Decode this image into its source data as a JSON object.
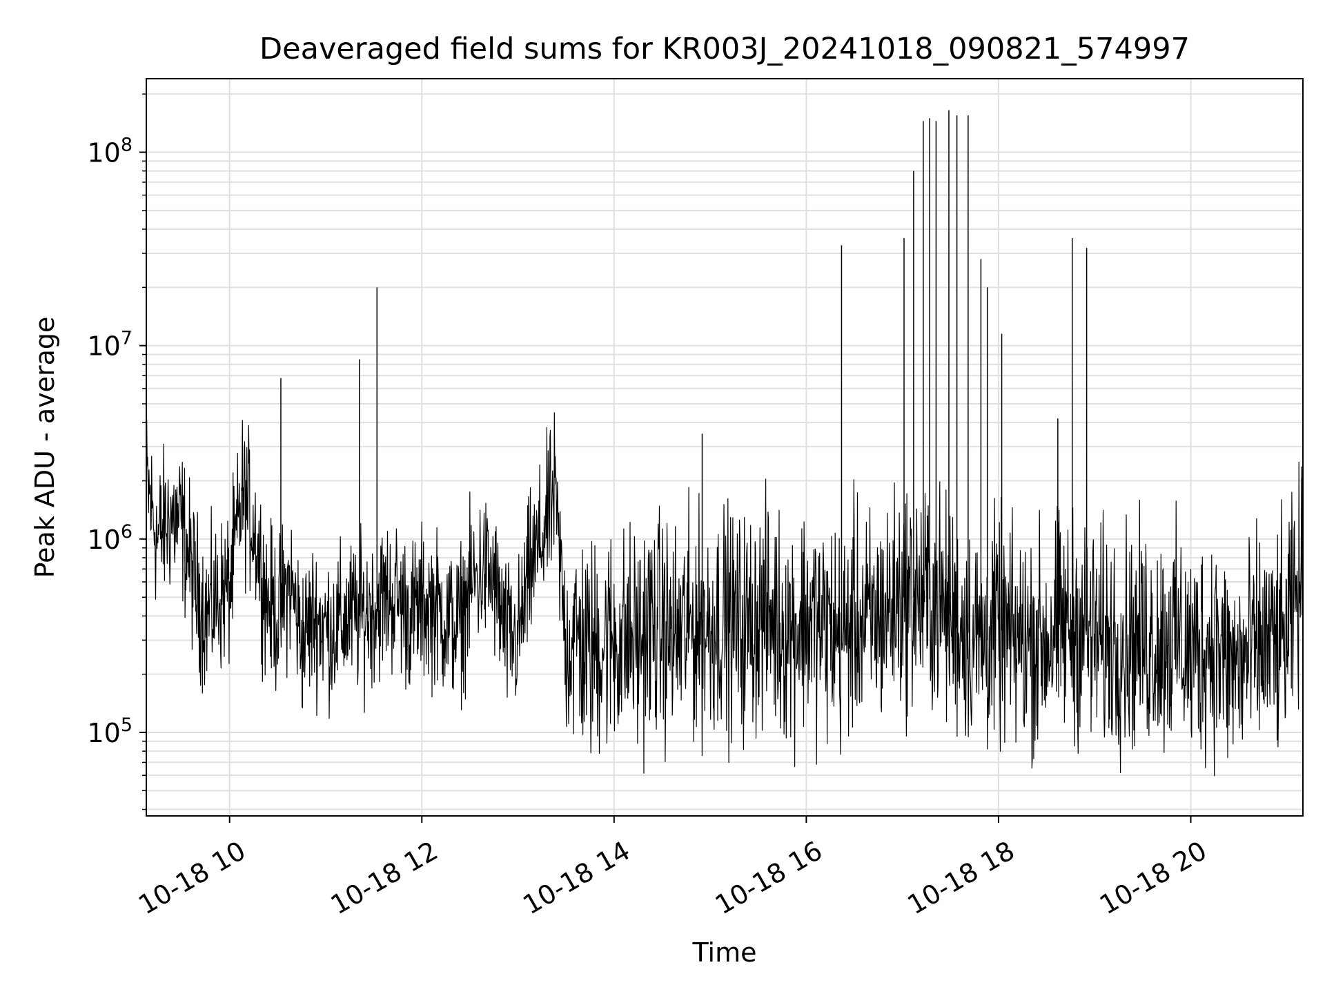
{
  "chart_data": {
    "type": "line",
    "title": "Deaveraged field sums for KR003J_20241018_090821_574997",
    "xlabel": "Time",
    "ylabel": "Peak ADU - average",
    "xscale": "time",
    "yscale": "log",
    "xlim": [
      "2024-10-18 09:08",
      "2024-10-18 21:10"
    ],
    "ylim": [
      37000,
      240000000
    ],
    "grid": true,
    "legend": "none",
    "line_color": "#000000",
    "grid_color": "#e0e0e0",
    "x_ticks": [
      {
        "value": "2024-10-18 10:00",
        "label": "10-18 10"
      },
      {
        "value": "2024-10-18 12:00",
        "label": "10-18 12"
      },
      {
        "value": "2024-10-18 14:00",
        "label": "10-18 14"
      },
      {
        "value": "2024-10-18 16:00",
        "label": "10-18 16"
      },
      {
        "value": "2024-10-18 18:00",
        "label": "10-18 18"
      },
      {
        "value": "2024-10-18 20:00",
        "label": "10-18 20"
      }
    ],
    "y_ticks": [
      {
        "value": 100000,
        "base": "10",
        "exp": "5"
      },
      {
        "value": 1000000,
        "base": "10",
        "exp": "6"
      },
      {
        "value": 10000000,
        "base": "10",
        "exp": "7"
      },
      {
        "value": 100000000,
        "base": "10",
        "exp": "8"
      }
    ],
    "series": [
      {
        "x": [
          "2024-10-18 09:08",
          "2024-10-18 09:15",
          "2024-10-18 09:23",
          "2024-10-18 09:30",
          "2024-10-18 09:38",
          "2024-10-18 09:45",
          "2024-10-18 09:53",
          "2024-10-18 10:00",
          "2024-10-18 10:08",
          "2024-10-18 10:15",
          "2024-10-18 10:23",
          "2024-10-18 10:30",
          "2024-10-18 10:38",
          "2024-10-18 10:45",
          "2024-10-18 10:53",
          "2024-10-18 11:00",
          "2024-10-18 11:08",
          "2024-10-18 11:15",
          "2024-10-18 11:23",
          "2024-10-18 11:30",
          "2024-10-18 11:38",
          "2024-10-18 11:45",
          "2024-10-18 11:53",
          "2024-10-18 12:00",
          "2024-10-18 12:08",
          "2024-10-18 12:15",
          "2024-10-18 12:23",
          "2024-10-18 12:30",
          "2024-10-18 12:38",
          "2024-10-18 12:45",
          "2024-10-18 12:53",
          "2024-10-18 13:00",
          "2024-10-18 13:08",
          "2024-10-18 13:15",
          "2024-10-18 13:23",
          "2024-10-18 13:30",
          "2024-10-18 13:38",
          "2024-10-18 13:45",
          "2024-10-18 13:53",
          "2024-10-18 14:00",
          "2024-10-18 14:08",
          "2024-10-18 14:15",
          "2024-10-18 14:23",
          "2024-10-18 14:30",
          "2024-10-18 14:38",
          "2024-10-18 14:45",
          "2024-10-18 14:53",
          "2024-10-18 15:00",
          "2024-10-18 15:08",
          "2024-10-18 15:15",
          "2024-10-18 15:23",
          "2024-10-18 15:30",
          "2024-10-18 15:38",
          "2024-10-18 15:45",
          "2024-10-18 15:53",
          "2024-10-18 16:00",
          "2024-10-18 16:08",
          "2024-10-18 16:15",
          "2024-10-18 16:23",
          "2024-10-18 16:30",
          "2024-10-18 16:38",
          "2024-10-18 16:45",
          "2024-10-18 16:53",
          "2024-10-18 17:00",
          "2024-10-18 17:08",
          "2024-10-18 17:15",
          "2024-10-18 17:23",
          "2024-10-18 17:30",
          "2024-10-18 17:38",
          "2024-10-18 17:45",
          "2024-10-18 17:53",
          "2024-10-18 18:00",
          "2024-10-18 18:08",
          "2024-10-18 18:15",
          "2024-10-18 18:23",
          "2024-10-18 18:30",
          "2024-10-18 18:38",
          "2024-10-18 18:45",
          "2024-10-18 18:53",
          "2024-10-18 19:00",
          "2024-10-18 19:08",
          "2024-10-18 19:15",
          "2024-10-18 19:23",
          "2024-10-18 19:30",
          "2024-10-18 19:38",
          "2024-10-18 19:45",
          "2024-10-18 19:53",
          "2024-10-18 20:00",
          "2024-10-18 20:08",
          "2024-10-18 20:15",
          "2024-10-18 20:23",
          "2024-10-18 20:30",
          "2024-10-18 20:38",
          "2024-10-18 20:45",
          "2024-10-18 20:53",
          "2024-10-18 21:00",
          "2024-10-18 21:08"
        ],
        "values": [
          2000000,
          1000000,
          1300000,
          1200000,
          600000,
          400000,
          500000,
          550000,
          1700000,
          1200000,
          500000,
          400000,
          600000,
          300000,
          400000,
          350000,
          350000,
          400000,
          400000,
          450000,
          500000,
          500000,
          400000,
          450000,
          450000,
          380000,
          350000,
          550000,
          700000,
          600000,
          300000,
          300000,
          700000,
          1000000,
          1700000,
          300000,
          300000,
          250000,
          300000,
          300000,
          300000,
          300000,
          350000,
          350000,
          300000,
          350000,
          350000,
          350000,
          400000,
          350000,
          350000,
          400000,
          400000,
          350000,
          350000,
          400000,
          350000,
          350000,
          300000,
          400000,
          350000,
          400000,
          450000,
          500000,
          500000,
          500000,
          450000,
          400000,
          350000,
          300000,
          300000,
          350000,
          300000,
          300000,
          300000,
          300000,
          350000,
          350000,
          350000,
          300000,
          300000,
          300000,
          300000,
          300000,
          300000,
          300000,
          300000,
          250000,
          280000,
          300000,
          220000,
          220000,
          250000,
          280000,
          280000,
          300000,
          600000
        ]
      },
      {
        "x": [
          "2024-10-18 09:08",
          "2024-10-18 10:32",
          "2024-10-18 11:21",
          "2024-10-18 11:32",
          "2024-10-18 14:55",
          "2024-10-18 16:22",
          "2024-10-18 17:01",
          "2024-10-18 17:07",
          "2024-10-18 17:13",
          "2024-10-18 17:17",
          "2024-10-18 17:21",
          "2024-10-18 17:29",
          "2024-10-18 17:34",
          "2024-10-18 17:41",
          "2024-10-18 17:49",
          "2024-10-18 17:53",
          "2024-10-18 18:02",
          "2024-10-18 18:37",
          "2024-10-18 18:46",
          "2024-10-18 18:55"
        ],
        "values": [
          3500000,
          6800000,
          8500000,
          20000000,
          3500000,
          33000000,
          36000000,
          80000000,
          145000000,
          150000000,
          145000000,
          165000000,
          155000000,
          155000000,
          28000000,
          20000000,
          11500000,
          4200000,
          36000000,
          32000000
        ]
      }
    ]
  }
}
